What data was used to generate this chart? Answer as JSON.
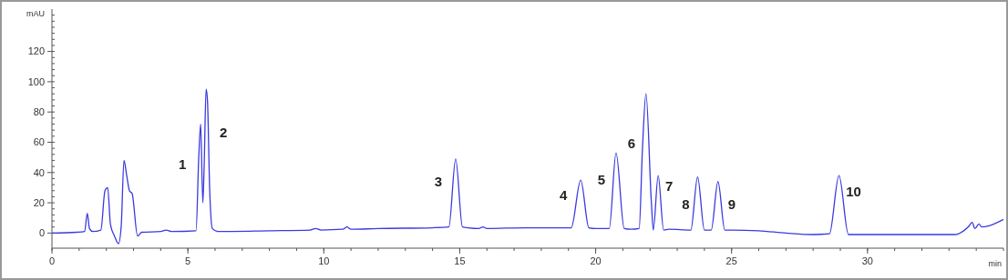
{
  "chart_data": {
    "type": "line",
    "xlabel": "min",
    "ylabel": "mAU",
    "xlim": [
      0,
      35
    ],
    "ylim": [
      -10,
      148
    ],
    "xticks": [
      0,
      5,
      10,
      15,
      20,
      25,
      30
    ],
    "yticks": [
      0,
      20,
      40,
      60,
      80,
      100,
      120
    ],
    "grid": false,
    "line_style": "solid",
    "series": [
      {
        "color": "#3a3ae0",
        "x": [
          0,
          0.9,
          1.2,
          1.3,
          1.38,
          1.5,
          1.8,
          1.95,
          2.05,
          2.15,
          2.3,
          2.45,
          2.55,
          2.65,
          2.75,
          2.85,
          2.95,
          3.15,
          3.3,
          4.0,
          4.2,
          4.4,
          5.3,
          5.4,
          5.47,
          5.55,
          5.6,
          5.67,
          5.72,
          5.8,
          5.9,
          6.1,
          8,
          9.5,
          9.7,
          9.9,
          10.7,
          10.85,
          11,
          12,
          14,
          14.6,
          14.85,
          15.1,
          15.3,
          15.7,
          15.85,
          16,
          17.4,
          19.1,
          19.45,
          19.75,
          20,
          20.5,
          20.75,
          21.05,
          21.3,
          21.6,
          21.72,
          21.85,
          22.05,
          22.12,
          22.3,
          22.5,
          22.7,
          23.5,
          23.75,
          24,
          24.25,
          24.5,
          24.75,
          25,
          26,
          27,
          28,
          28.6,
          28.95,
          29.3,
          30,
          32,
          33.2,
          33.7,
          33.85,
          33.95,
          34.1,
          34.2,
          34.5,
          35
        ],
        "values": [
          0,
          0.5,
          1,
          13,
          3,
          1,
          2,
          28,
          30,
          6,
          -2,
          -7,
          5,
          48,
          38,
          28,
          26,
          -2,
          0.5,
          1,
          2,
          1,
          1.5,
          50,
          72,
          20,
          45,
          95,
          88,
          30,
          3,
          1,
          1.5,
          2,
          3,
          2,
          2.5,
          4,
          2.5,
          3,
          3.5,
          4,
          49,
          4,
          3.5,
          3,
          4,
          3,
          3.5,
          3.5,
          35,
          3.5,
          3,
          3,
          53,
          3,
          2.5,
          3,
          55,
          92,
          20,
          2,
          38,
          2,
          2.5,
          2,
          37,
          2,
          2,
          34,
          2,
          2,
          1.5,
          0,
          -1,
          -0.5,
          38,
          -1,
          -1,
          -1,
          -1,
          4,
          7,
          3,
          6,
          4,
          5,
          9
        ]
      }
    ],
    "annotations": [
      {
        "text": "1",
        "x": 5.47,
        "y": 72
      },
      {
        "text": "2",
        "x": 5.67,
        "y": 95
      },
      {
        "text": "3",
        "x": 14.85,
        "y": 49
      },
      {
        "text": "4",
        "x": 19.45,
        "y": 35
      },
      {
        "text": "5",
        "x": 20.75,
        "y": 53
      },
      {
        "text": "6",
        "x": 21.72,
        "y": 55
      },
      {
        "text": "7",
        "x": 22.3,
        "y": 38
      },
      {
        "text": "8",
        "x": 23.75,
        "y": 37
      },
      {
        "text": "9",
        "x": 24.5,
        "y": 34
      },
      {
        "text": "10",
        "x": 28.95,
        "y": 38
      }
    ]
  }
}
